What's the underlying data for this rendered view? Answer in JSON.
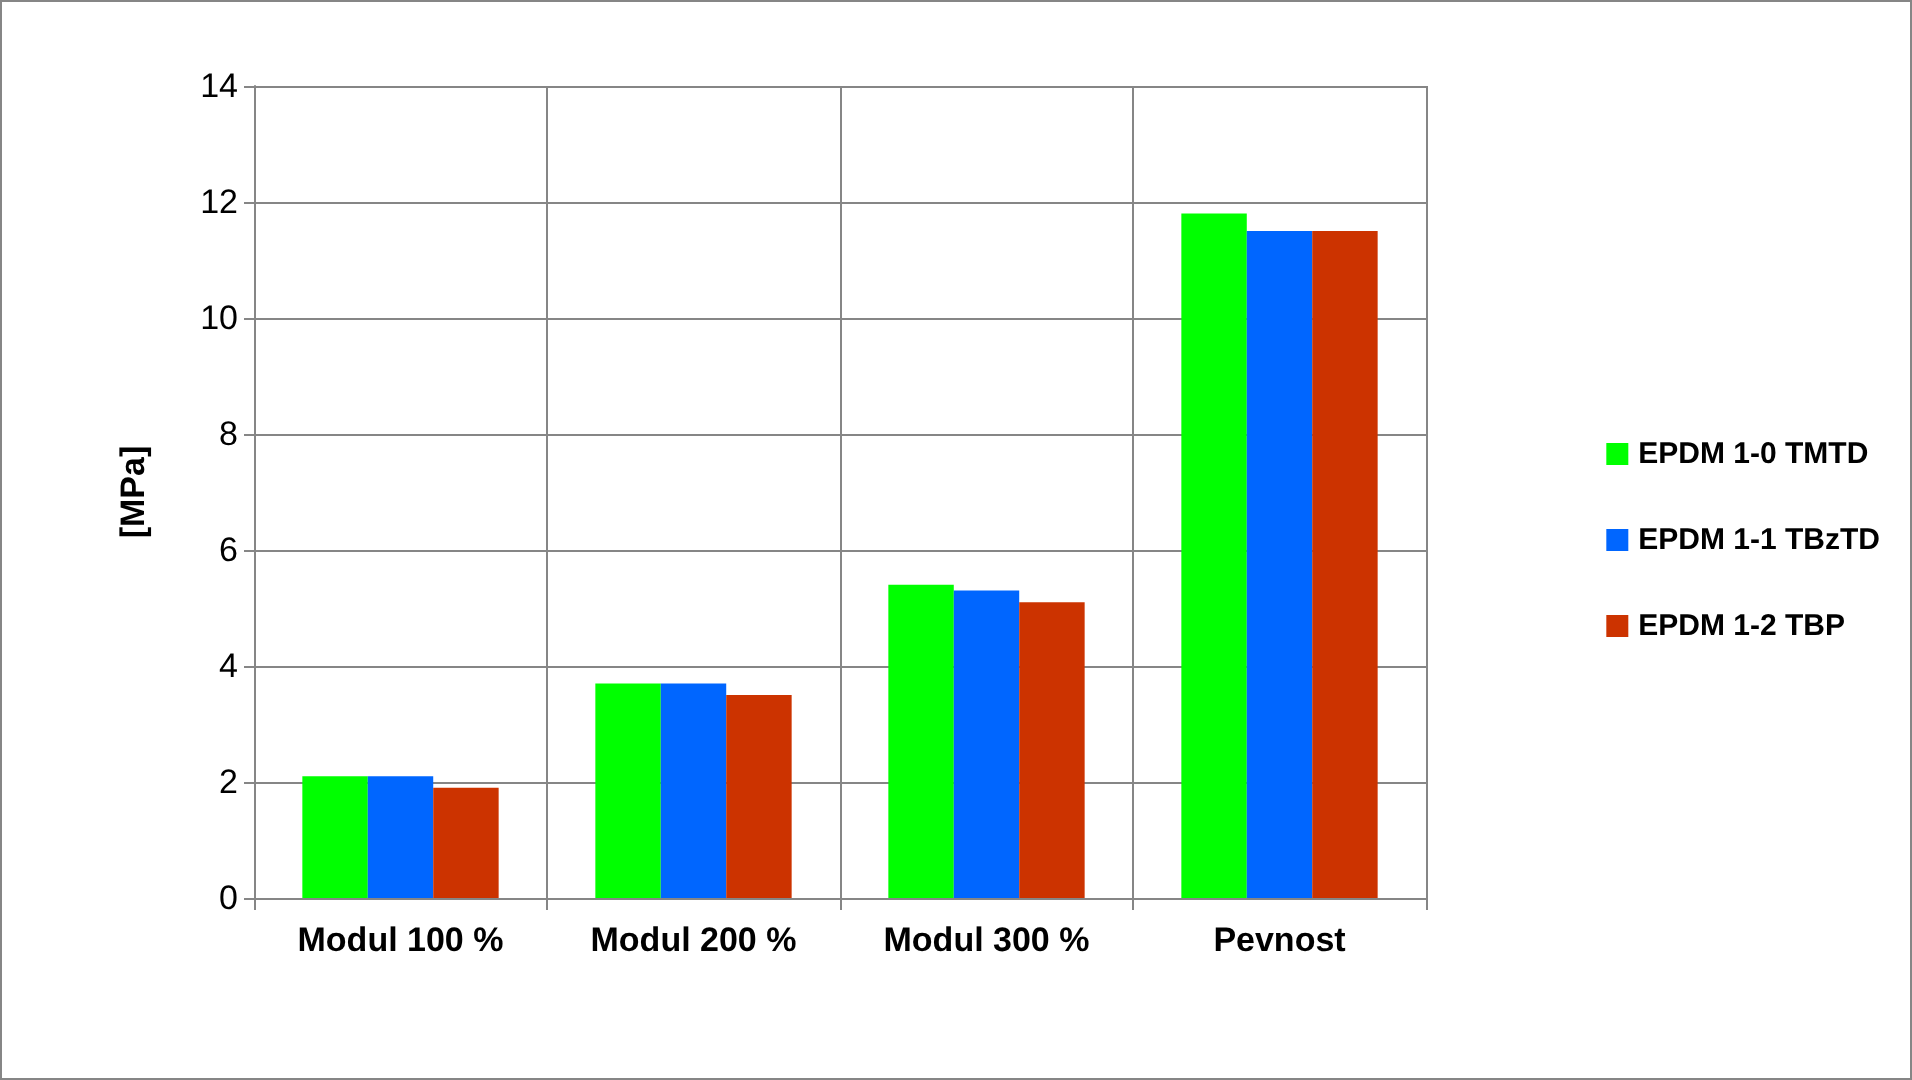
{
  "chart_data": {
    "type": "bar",
    "ylabel": "[MPa]",
    "categories": [
      "Modul 100 %",
      "Modul 200 %",
      "Modul 300 %",
      "Pevnost"
    ],
    "series": [
      {
        "name": "EPDM 1-0 TMTD",
        "color": "#00ff00",
        "values": [
          2.1,
          3.7,
          5.4,
          11.8
        ]
      },
      {
        "name": "EPDM 1-1 TBzTD",
        "color": "#0066ff",
        "values": [
          2.1,
          3.7,
          5.3,
          11.5
        ]
      },
      {
        "name": "EPDM 1-2 TBP",
        "color": "#cc3300",
        "values": [
          1.9,
          3.5,
          5.1,
          11.5
        ]
      }
    ],
    "ylim": [
      0,
      14
    ],
    "yticks": [
      0,
      2,
      4,
      6,
      8,
      10,
      12,
      14
    ],
    "grid": true,
    "legend": "right"
  }
}
